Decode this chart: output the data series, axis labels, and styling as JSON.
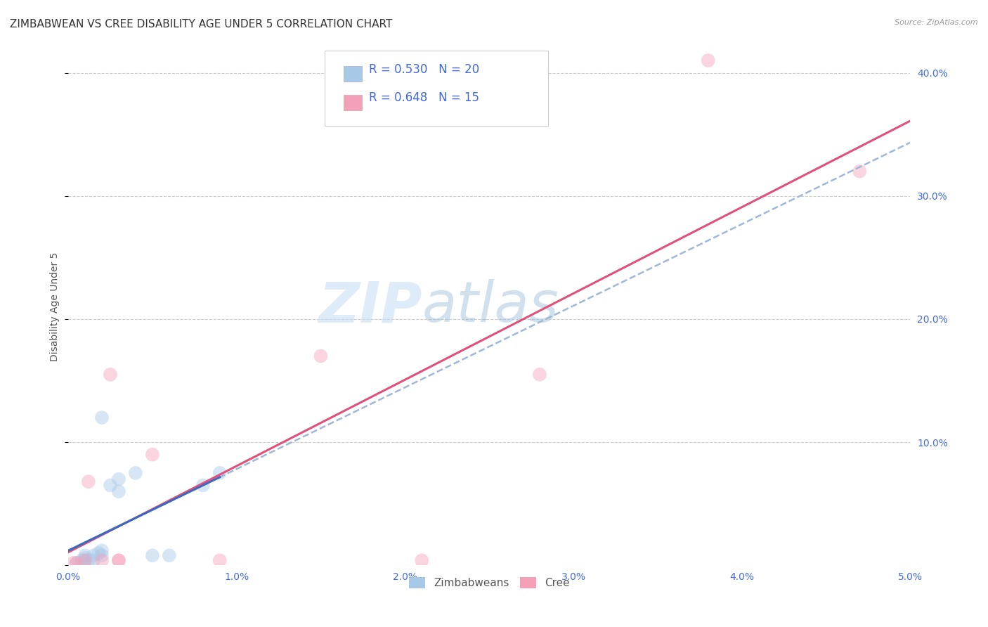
{
  "title": "ZIMBABWEAN VS CREE DISABILITY AGE UNDER 5 CORRELATION CHART",
  "source": "Source: ZipAtlas.com",
  "ylabel": "Disability Age Under 5",
  "legend_label1": "Zimbabweans",
  "legend_label2": "Cree",
  "r1": 0.53,
  "n1": 20,
  "r2": 0.648,
  "n2": 15,
  "color1": "#a8c8e8",
  "color2": "#f4a0b8",
  "line1_color": "#3a6abf",
  "line2_color": "#e0507a",
  "dashed_color": "#a0b8d8",
  "xmin": 0.0,
  "xmax": 0.05,
  "ymin": 0.0,
  "ymax": 0.42,
  "x_ticks": [
    0.0,
    0.01,
    0.02,
    0.03,
    0.04,
    0.05
  ],
  "x_tick_labels": [
    "0.0%",
    "1.0%",
    "2.0%",
    "3.0%",
    "4.0%",
    "5.0%"
  ],
  "y_ticks": [
    0.0,
    0.1,
    0.2,
    0.3,
    0.4
  ],
  "y_tick_labels": [
    "",
    "10.0%",
    "20.0%",
    "30.0%",
    "40.0%"
  ],
  "watermark_zip": "ZIP",
  "watermark_atlas": "atlas",
  "zimp_points_x": [
    0.0005,
    0.0008,
    0.001,
    0.001,
    0.001,
    0.0012,
    0.0015,
    0.0015,
    0.0018,
    0.002,
    0.002,
    0.002,
    0.0025,
    0.003,
    0.003,
    0.004,
    0.005,
    0.006,
    0.008,
    0.009
  ],
  "zimp_points_y": [
    0.002,
    0.004,
    0.004,
    0.006,
    0.008,
    0.004,
    0.004,
    0.008,
    0.01,
    0.008,
    0.012,
    0.12,
    0.065,
    0.06,
    0.07,
    0.075,
    0.008,
    0.008,
    0.065,
    0.075
  ],
  "cree_points_x": [
    0.0003,
    0.0005,
    0.001,
    0.0012,
    0.002,
    0.0025,
    0.003,
    0.003,
    0.005,
    0.009,
    0.015,
    0.021,
    0.028,
    0.038,
    0.047
  ],
  "cree_points_y": [
    0.002,
    0.002,
    0.004,
    0.068,
    0.004,
    0.155,
    0.004,
    0.004,
    0.09,
    0.004,
    0.17,
    0.004,
    0.155,
    0.41,
    0.32
  ],
  "marker_size": 200,
  "marker_alpha": 0.45,
  "background_color": "#ffffff",
  "plot_bg_color": "#ffffff",
  "grid_color": "#cccccc",
  "title_fontsize": 11,
  "axis_label_fontsize": 10,
  "tick_fontsize": 10,
  "tick_color": "#4169e1",
  "legend_text_color": "#4169e1"
}
